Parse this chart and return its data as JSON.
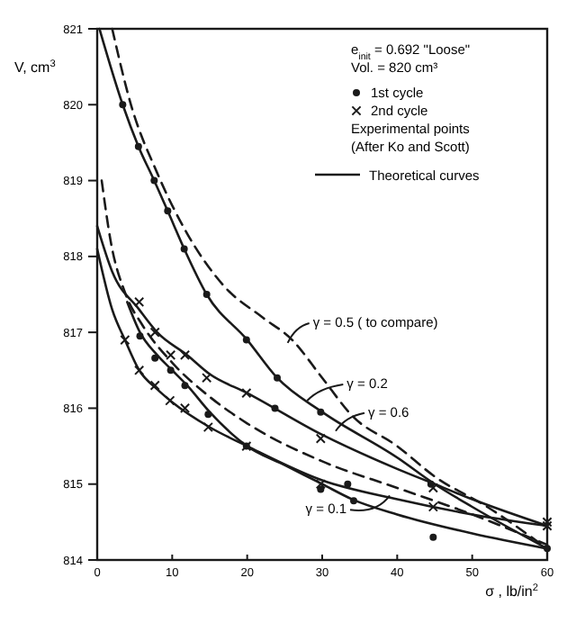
{
  "chart_data": {
    "type": "line",
    "xlabel": "σ , lb/in$^{2}$",
    "ylabel": "V, cm$^{3}$",
    "xlim": [
      0,
      60
    ],
    "ylim": [
      814,
      821
    ],
    "xticks": [
      0,
      10,
      20,
      30,
      40,
      50,
      60
    ],
    "yticks": [
      814,
      815,
      816,
      817,
      818,
      819,
      820,
      821
    ],
    "grid": false,
    "legend": "top right",
    "series": [
      {
        "color": "#1a1a1a",
        "line_style": "solid",
        "x": [
          0.3,
          3.4,
          5.5,
          7.6,
          9.4,
          11.6,
          14.6,
          20,
          24,
          30,
          40,
          45,
          50,
          60
        ],
        "values": [
          821,
          820,
          819.45,
          819,
          818.6,
          818.1,
          817.5,
          816.9,
          816.4,
          815.95,
          815.35,
          815,
          814.7,
          814.15
        ]
      },
      {
        "color": "#1a1a1a",
        "line_style": "dashed",
        "x": [
          2,
          4.5,
          8,
          12,
          17,
          22,
          26,
          30,
          34,
          40,
          45,
          52,
          60
        ],
        "values": [
          821,
          820,
          819.1,
          818.3,
          817.6,
          817.2,
          816.9,
          816.4,
          815.9,
          815.5,
          815.1,
          814.7,
          814.15
        ]
      },
      {
        "color": "#1a1a1a",
        "line_style": "solid",
        "x": [
          0,
          2,
          5.6,
          8,
          12,
          15,
          20,
          30,
          40,
          45,
          50,
          60
        ],
        "values": [
          818.4,
          817.8,
          817.3,
          817,
          816.7,
          816.45,
          816.2,
          815.65,
          815.2,
          815,
          814.8,
          814.45
        ]
      },
      {
        "color": "#1a1a1a",
        "line_style": "solid",
        "x": [
          0,
          2,
          3.7,
          5.6,
          8,
          10,
          15,
          20,
          30,
          40,
          50,
          60
        ],
        "values": [
          818.1,
          817.3,
          816.9,
          816.5,
          816.25,
          816.08,
          815.75,
          815.5,
          815.05,
          814.8,
          814.6,
          814.45
        ]
      },
      {
        "color": "#1a1a1a",
        "line_style": "solid",
        "x": [
          4,
          5.7,
          8,
          10,
          12,
          15,
          20,
          25,
          30,
          34,
          40,
          50,
          60
        ],
        "values": [
          817.4,
          817,
          816.7,
          816.5,
          816.3,
          815.95,
          815.5,
          815.25,
          815,
          814.8,
          814.6,
          814.35,
          814.15
        ]
      },
      {
        "color": "#1a1a1a",
        "line_style": "dashed",
        "x": [
          0.6,
          1.8,
          3.8,
          6,
          10,
          15,
          20,
          30,
          40,
          50,
          60
        ],
        "values": [
          819,
          818.2,
          817.5,
          817.1,
          816.6,
          816.15,
          815.8,
          815.3,
          814.95,
          814.6,
          814.2
        ]
      },
      {
        "type": "scatter",
        "name": "1st cycle",
        "color": "#1a1a1a",
        "marker": "circle",
        "x": [
          3.4,
          5.5,
          7.6,
          9.4,
          11.6,
          14.6,
          19.9,
          24,
          29.8,
          44.5,
          5.7,
          7.7,
          9.8,
          11.7,
          14.8,
          19.9,
          23.7,
          29.8,
          33.4,
          34.2,
          44.8,
          60
        ],
        "values": [
          820,
          819.45,
          819,
          818.6,
          818.1,
          817.5,
          816.9,
          816.4,
          815.95,
          815,
          816.95,
          816.66,
          816.5,
          816.3,
          815.92,
          815.5,
          816,
          814.93,
          815,
          814.78,
          814.3,
          814.15
        ]
      },
      {
        "type": "scatter",
        "name": "2nd cycle",
        "color": "#1a1a1a",
        "marker": "cross",
        "x": [
          3.7,
          5.6,
          7.7,
          9.7,
          11.7,
          14.8,
          19.9,
          29.8,
          44.8,
          60,
          5.6,
          7.7,
          9.8,
          11.7,
          14.6,
          19.9,
          29.8,
          44.8,
          60
        ],
        "values": [
          816.9,
          816.5,
          816.3,
          816.1,
          816,
          815.75,
          815.5,
          815,
          814.7,
          814.5,
          817.4,
          817,
          816.7,
          816.7,
          816.4,
          816.2,
          815.6,
          814.95,
          814.45
        ]
      }
    ],
    "annotations": [
      "e$_{init}$ = 0.692 \"Loose\"",
      "Vol. = 820 cm³",
      "Experimental points",
      "(After Ko and Scott)",
      "Theoretical curves",
      {
        "text": "γ = 0.5 ( to compare)",
        "x": 25.4,
        "y": 816.86
      },
      {
        "text": "γ = 0.2",
        "x": 28,
        "y": 816.1
      },
      {
        "text": "γ = 0.6",
        "x": 31.8,
        "y": 815.7
      },
      {
        "text": "γ = 0.1",
        "x": 39,
        "y": 814.85
      }
    ]
  }
}
